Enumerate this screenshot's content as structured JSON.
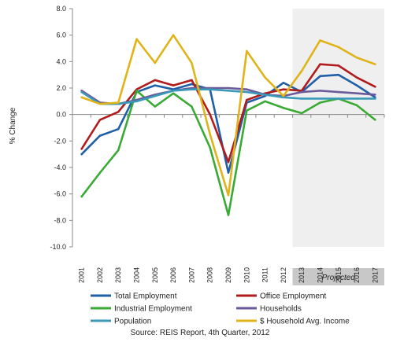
{
  "chart_data": {
    "type": "line",
    "ylabel": "% Change",
    "ylim": [
      -10,
      8
    ],
    "ytick_step": 2,
    "grid": false,
    "legend_position": "bottom",
    "categories": [
      "2001",
      "2002",
      "2003",
      "2004",
      "2005",
      "2006",
      "2007",
      "2008",
      "2009",
      "2010",
      "2011",
      "2012",
      "2013",
      "2014",
      "2015",
      "2016",
      "2017"
    ],
    "projected": {
      "label": "Projected",
      "from": "2013",
      "to": "2017"
    },
    "source": "Source: REIS Report, 4th Quarter, 2012",
    "series": [
      {
        "name": "Total Employment",
        "color": "#1f5fa8",
        "values": [
          -3.0,
          -1.6,
          -1.1,
          1.7,
          2.2,
          1.9,
          2.3,
          1.9,
          -4.4,
          0.9,
          1.4,
          2.4,
          1.7,
          2.9,
          3.0,
          2.2,
          1.3
        ]
      },
      {
        "name": "Office Employment",
        "color": "#b01c1c",
        "values": [
          -2.6,
          -0.4,
          0.2,
          1.9,
          2.6,
          2.2,
          2.6,
          0.0,
          -3.6,
          1.1,
          1.6,
          1.9,
          1.8,
          3.8,
          3.7,
          2.8,
          2.1
        ]
      },
      {
        "name": "Industrial Employment",
        "color": "#3aaa35",
        "values": [
          -6.2,
          -4.4,
          -2.7,
          1.8,
          0.6,
          1.6,
          0.6,
          -2.5,
          -7.6,
          0.3,
          1.0,
          0.5,
          0.1,
          0.9,
          1.2,
          0.7,
          -0.4
        ]
      },
      {
        "name": "Households",
        "color": "#6a5a9a",
        "values": [
          1.8,
          0.9,
          0.8,
          1.1,
          1.5,
          1.8,
          2.0,
          2.0,
          2.0,
          1.9,
          1.5,
          1.4,
          1.7,
          1.8,
          1.7,
          1.6,
          1.5
        ]
      },
      {
        "name": "Population",
        "color": "#3a98b8",
        "values": [
          1.7,
          0.8,
          0.8,
          1.0,
          1.4,
          1.8,
          1.9,
          1.9,
          1.8,
          1.7,
          1.5,
          1.3,
          1.2,
          1.2,
          1.2,
          1.2,
          1.2
        ]
      },
      {
        "name": "$ Household Avg. Income",
        "color": "#e0b418",
        "values": [
          1.3,
          0.8,
          0.9,
          5.7,
          3.9,
          6.0,
          3.9,
          -1.5,
          -6.1,
          4.8,
          2.8,
          1.4,
          3.3,
          5.6,
          5.1,
          4.3,
          3.8
        ]
      }
    ]
  }
}
